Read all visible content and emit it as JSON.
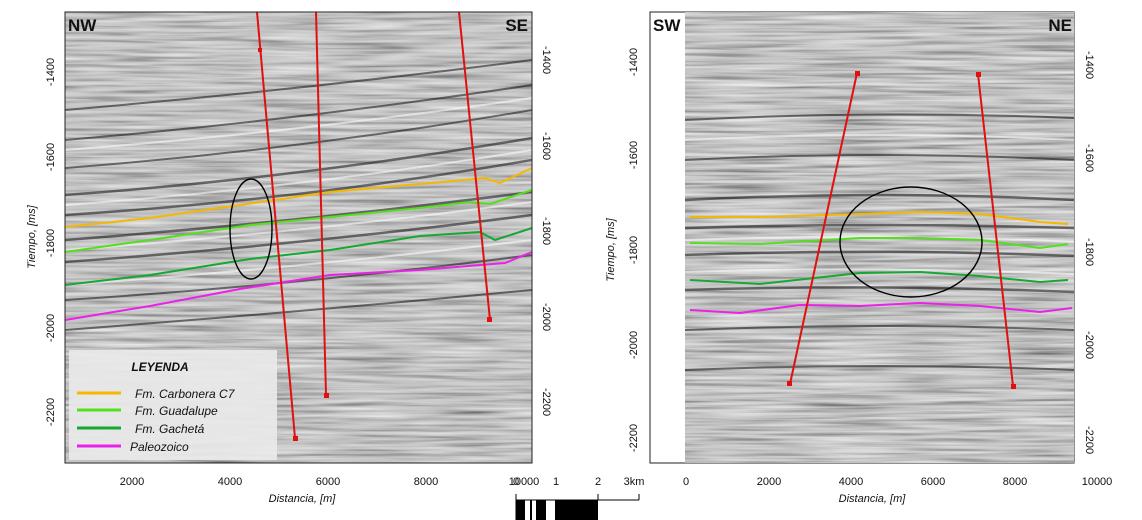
{
  "colors": {
    "carbonera": "#f5b800",
    "guadalupe": "#55e01e",
    "gacheta": "#16a832",
    "paleozoico": "#ea22e8",
    "well": "#e01010",
    "seismic_mid": "#8f8f8f"
  },
  "left_section": {
    "corner_left": "NW",
    "corner_right": "SE",
    "y_title": "Tiempo, [ms]",
    "x_title": "Distancia, [m]",
    "x_ticks": [
      "2000",
      "4000",
      "6000",
      "8000",
      "10000"
    ],
    "y_ticks": [
      "-1400",
      "-1600",
      "-1800",
      "-2000",
      "-2200"
    ],
    "y_ticks_right": [
      "-1400",
      "-1600",
      "-1800",
      "-2000",
      "-2200"
    ]
  },
  "right_section": {
    "corner_left": "SW",
    "corner_right": "NE",
    "y_title": "Tiempo, [ms]",
    "x_title": "Distancia, [m]",
    "x_ticks": [
      "0",
      "2000",
      "4000",
      "6000",
      "8000",
      "10000"
    ],
    "y_ticks": [
      "-1400",
      "-1600",
      "-1800",
      "-2000",
      "-2200"
    ],
    "y_ticks_right": [
      "-1400",
      "-1600",
      "-1800",
      "-2000",
      "-2200"
    ]
  },
  "legend": {
    "title": "LEYENDA",
    "items": [
      {
        "label": "Fm.  Carbonera C7",
        "color": "#f5b800"
      },
      {
        "label": "Fm.  Guadalupe",
        "color": "#55e01e"
      },
      {
        "label": "Fm.  Gachetá",
        "color": "#16a832"
      },
      {
        "label": "Paleozoico",
        "color": "#ea22e8"
      }
    ]
  },
  "scale_bar": {
    "labels": [
      "0",
      "1",
      "2",
      "3km"
    ]
  }
}
